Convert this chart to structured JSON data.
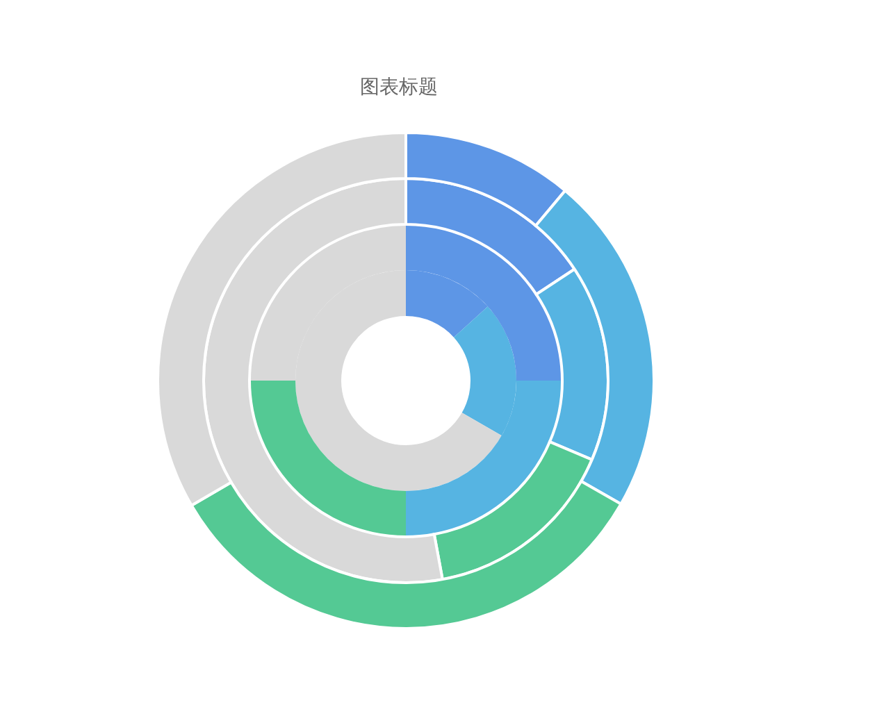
{
  "chart_data": {
    "type": "donut",
    "title": "图表标题",
    "categories": [
      null,
      null,
      null,
      null
    ],
    "colors": [
      "#5d96e6",
      "#56b4e2",
      "#54c994",
      "#d9d9d9"
    ],
    "series": [
      {
        "values": [
          13.3,
          20,
          null,
          66.7
        ]
      },
      {
        "values": [
          25,
          25,
          25,
          25
        ]
      },
      {
        "values": [
          15.7,
          15.7,
          15.7,
          52.9
        ]
      },
      {
        "values": [
          11.1,
          22.2,
          33.3,
          33.4
        ]
      }
    ]
  }
}
